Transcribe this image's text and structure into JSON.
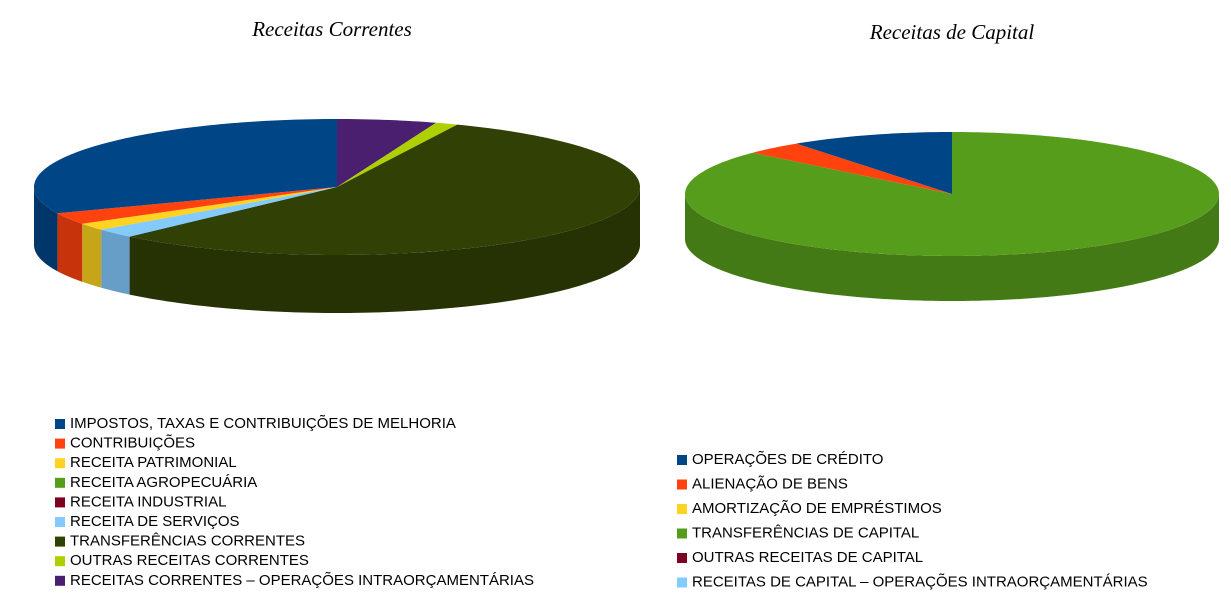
{
  "chart_data": [
    {
      "type": "pie",
      "title": "Receitas Correntes",
      "categories": [
        "IMPOSTOS, TAXAS E CONTRIBUIÇÕES DE MELHORIA",
        "CONTRIBUIÇÕES",
        "RECEITA PATRIMONIAL",
        "RECEITA AGROPECUÁRIA",
        "RECEITA INDUSTRIAL",
        "RECEITA DE SERVIÇOS",
        "TRANSFERÊNCIAS CORRENTES",
        "OUTRAS RECEITAS CORRENTES",
        "RECEITAS CORRENTES – OPERAÇÕES INTRAORÇAMENTÁRIAS"
      ],
      "values": [
        31.3,
        2.8,
        1.7,
        0,
        0,
        2.2,
        55.5,
        1.2,
        5.3
      ],
      "colors": [
        "#004586",
        "#ff420e",
        "#ffd320",
        "#579d1c",
        "#7e0021",
        "#83caff",
        "#314004",
        "#aecf00",
        "#4b1f6f"
      ]
    },
    {
      "type": "pie",
      "title": "Receitas de Capital",
      "categories": [
        "OPERAÇÕES DE CRÉDITO",
        "ALIENAÇÃO DE BENS",
        "AMORTIZAÇÃO DE EMPRÉSTIMOS",
        "TRANSFERÊNCIAS DE CAPITAL",
        "OUTRAS RECEITAS DE CAPITAL",
        "RECEITAS DE CAPITAL – OPERAÇÕES INTRAORÇAMENTÁRIAS"
      ],
      "values": [
        9.9,
        3.5,
        0,
        86.6,
        0,
        0
      ],
      "colors": [
        "#004586",
        "#ff420e",
        "#ffd320",
        "#579d1c",
        "#7e0021",
        "#83caff"
      ]
    }
  ]
}
